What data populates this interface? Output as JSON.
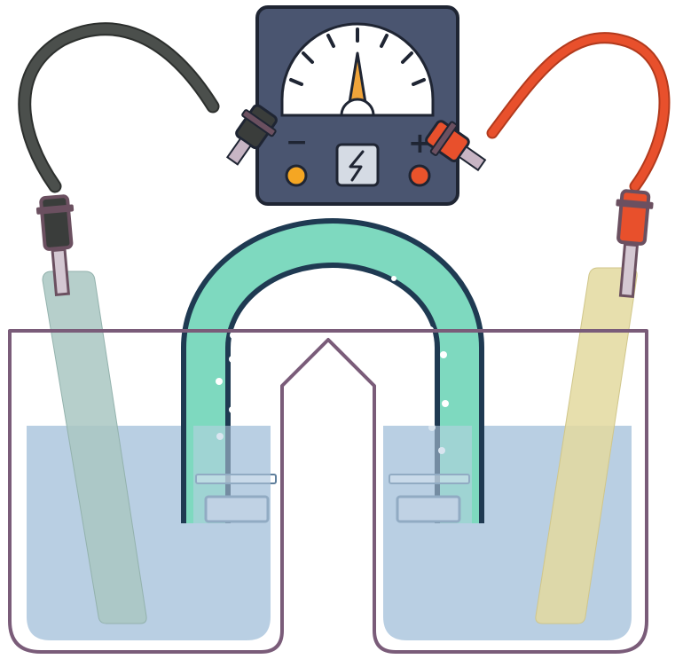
{
  "meter": {
    "negative_sign": "−",
    "positive_sign": "+",
    "icon": "lightning-bolt-icon",
    "needle_level": 0.5
  },
  "colors": {
    "meter_body": "#4a5570",
    "meter_outline": "#1f2533",
    "terminal": "#f5a623",
    "terminal_positive": "#e8532b",
    "wire_negative": "#4b4f4c",
    "wire_positive": "#e8502c",
    "clip": "#6b5060",
    "electrode_left": "#a9c7c2",
    "electrode_right": "#e3d99f",
    "salt_bridge": "#7ed9bf",
    "solution": "#b9cfe3",
    "beaker_outline": "#7a5c79"
  }
}
